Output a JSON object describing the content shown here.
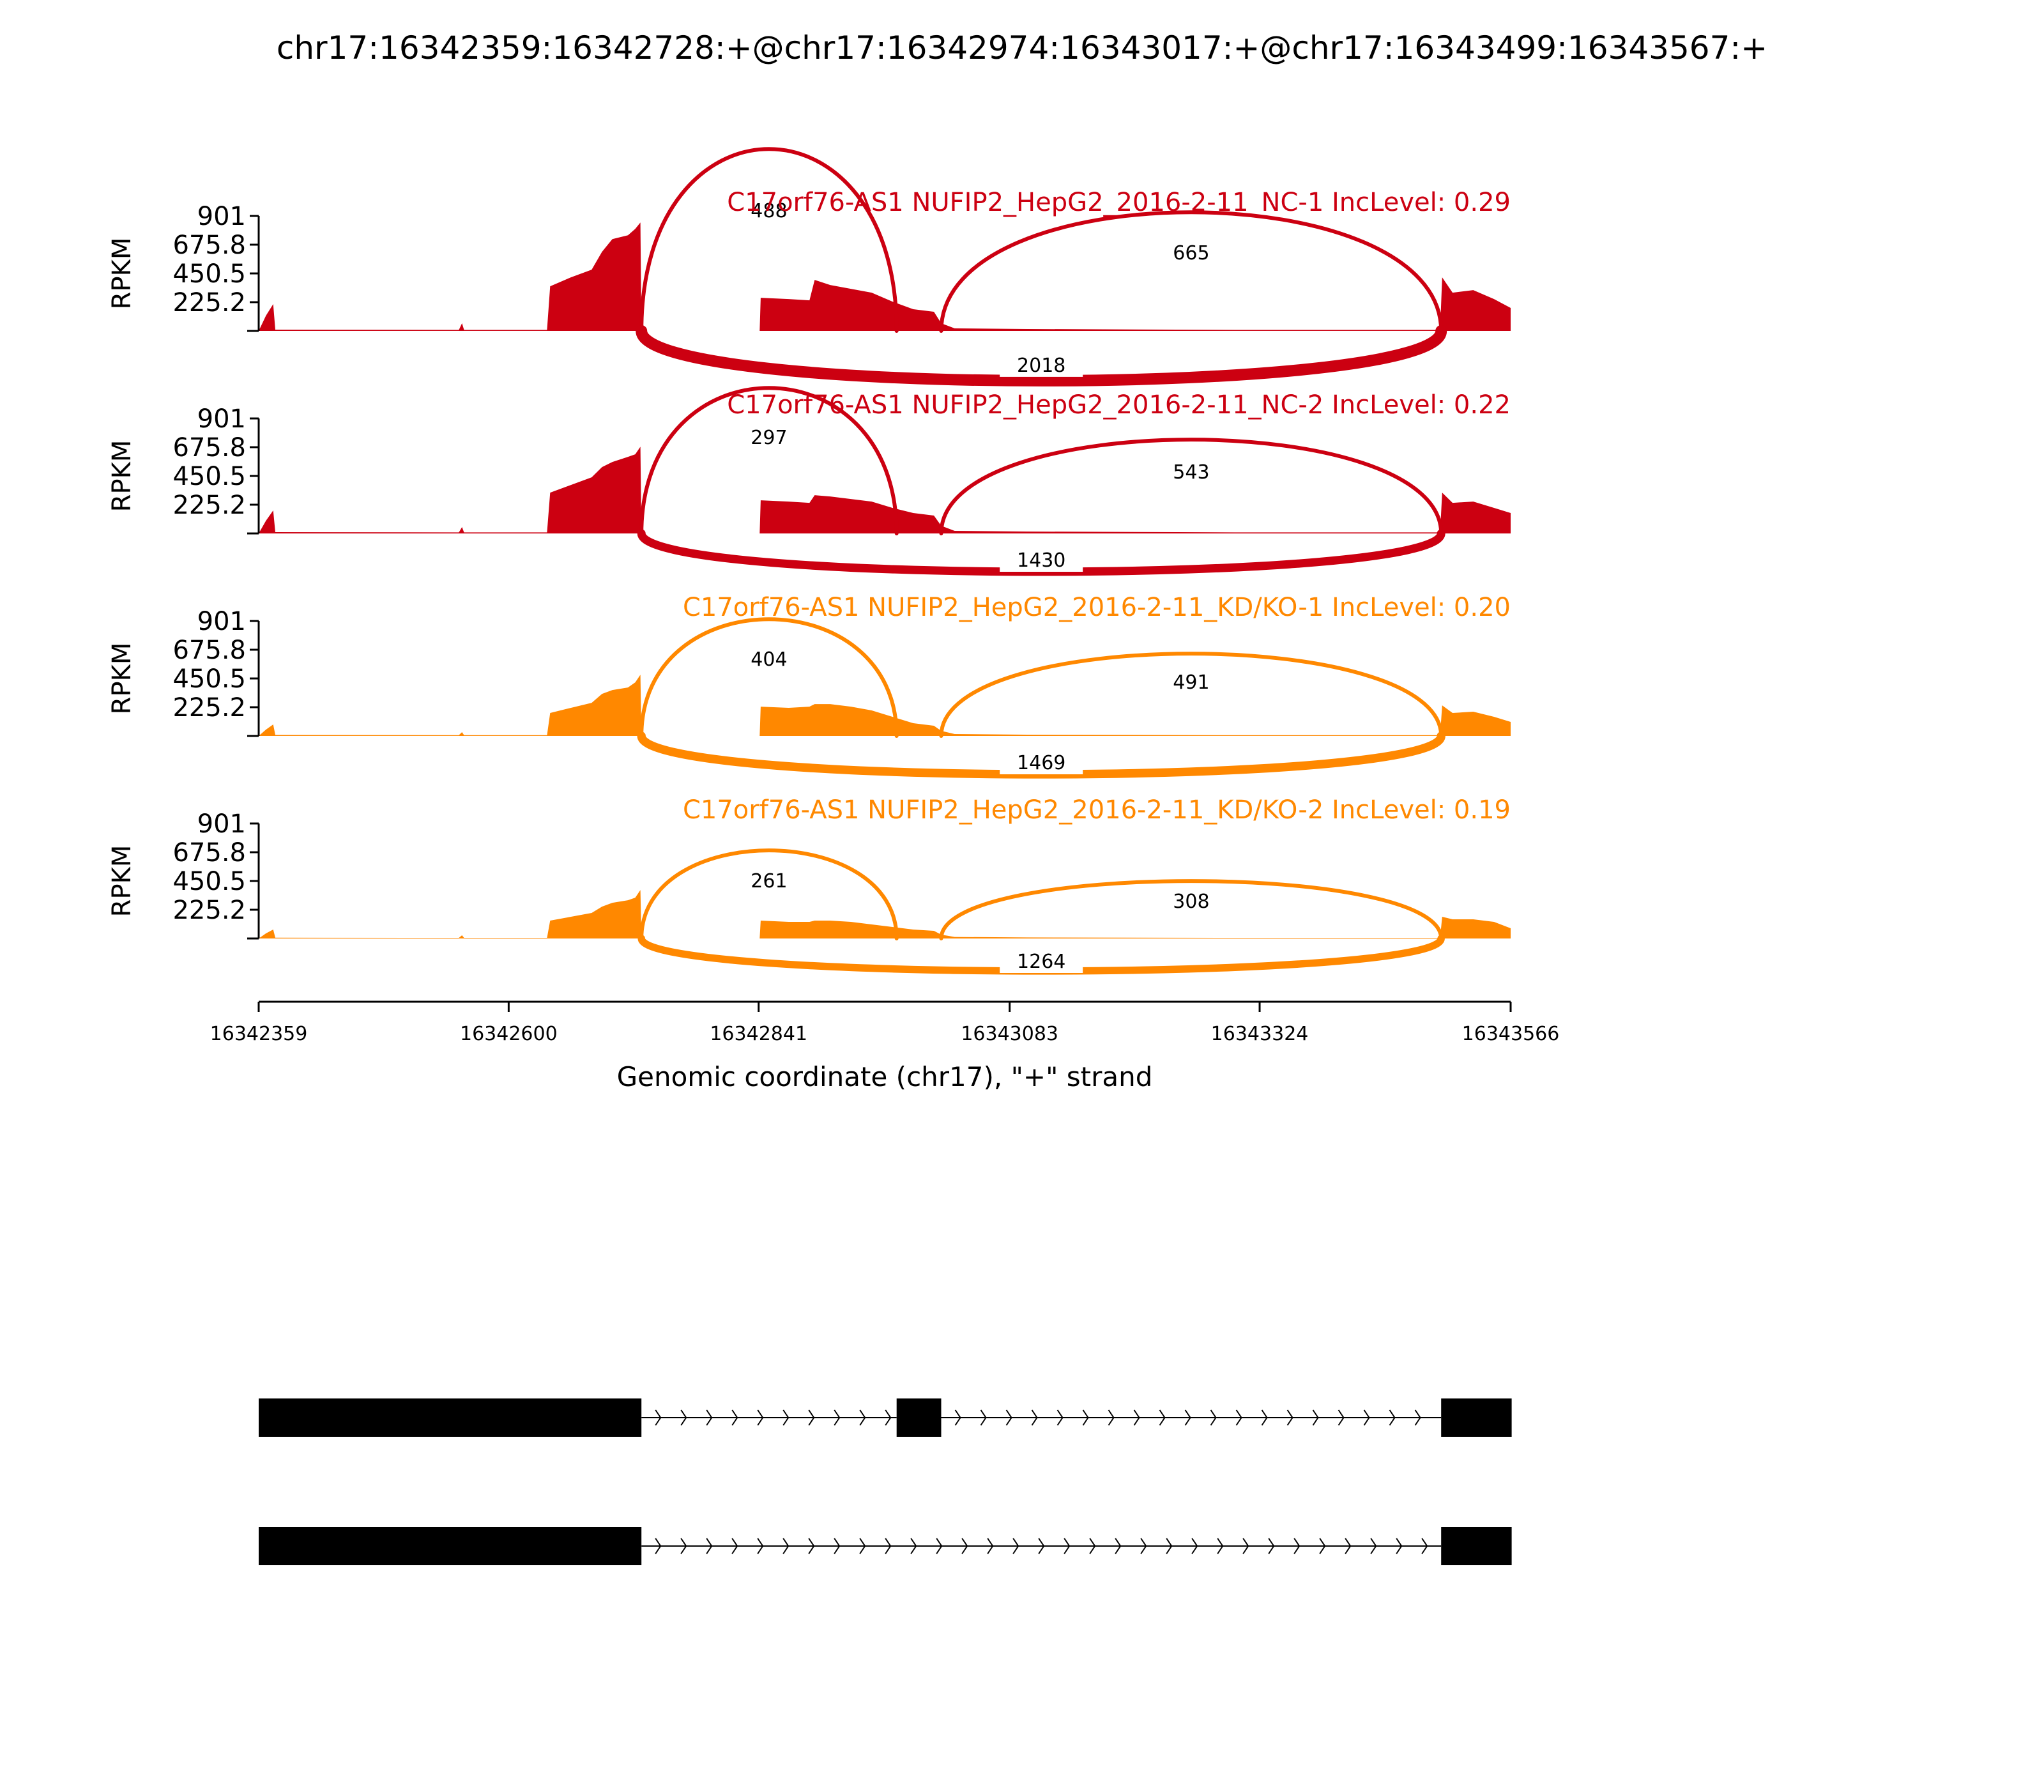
{
  "chart_data": {
    "type": "area",
    "title": "chr17:16342359:16342728:+@chr17:16342974:16343017:+@chr17:16343499:16343567:+",
    "xlabel": "Genomic coordinate (chr17), \"+\" strand",
    "ylabel": "RPKM",
    "xlim": [
      16342359,
      16343566
    ],
    "x_ticks": [
      "16342359",
      "16342600",
      "16342841",
      "16343083",
      "16343324",
      "16343566"
    ],
    "ylim": [
      0,
      901
    ],
    "y_ticks": [
      "225.2",
      "450.5",
      "675.8",
      "901"
    ],
    "colors": {
      "NC": "#cc0011",
      "KD": "#ff8800",
      "gene": "#000000"
    },
    "exons": [
      {
        "name": "exon1",
        "start": 16342359,
        "end": 16342728
      },
      {
        "name": "exon2",
        "start": 16342974,
        "end": 16343017
      },
      {
        "name": "exon3",
        "start": 16343499,
        "end": 16343567
      }
    ],
    "tracks": [
      {
        "label": "C17orf76-AS1 NUFIP2_HepG2_2016-2-11_NC-1 IncLevel: 0.29",
        "group": "NC",
        "coverage": [
          [
            16342359,
            0
          ],
          [
            16342366,
            120
          ],
          [
            16342373,
            210
          ],
          [
            16342375,
            10
          ],
          [
            16342552,
            8
          ],
          [
            16342555,
            60
          ],
          [
            16342557,
            8
          ],
          [
            16342637,
            8
          ],
          [
            16342640,
            350
          ],
          [
            16342660,
            420
          ],
          [
            16342680,
            480
          ],
          [
            16342690,
            620
          ],
          [
            16342700,
            720
          ],
          [
            16342715,
            750
          ],
          [
            16342722,
            800
          ],
          [
            16342727,
            850
          ],
          [
            16342728,
            0
          ],
          [
            16342842,
            0
          ],
          [
            16342843,
            260
          ],
          [
            16342870,
            250
          ],
          [
            16342890,
            240
          ],
          [
            16342895,
            400
          ],
          [
            16342910,
            360
          ],
          [
            16342930,
            330
          ],
          [
            16342950,
            300
          ],
          [
            16342970,
            230
          ],
          [
            16342990,
            170
          ],
          [
            16343010,
            150
          ],
          [
            16343017,
            60
          ],
          [
            16343030,
            20
          ],
          [
            16343100,
            15
          ],
          [
            16343300,
            8
          ],
          [
            16343498,
            8
          ],
          [
            16343500,
            420
          ],
          [
            16343510,
            300
          ],
          [
            16343530,
            320
          ],
          [
            16343550,
            250
          ],
          [
            16343566,
            180
          ],
          [
            16343566,
            0
          ]
        ],
        "junctions": [
          {
            "from": 16342728,
            "to": 16342974,
            "count": "488",
            "side": "above",
            "apex": 950
          },
          {
            "from": 16343017,
            "to": 16343499,
            "count": "665",
            "side": "above",
            "apex": 620
          },
          {
            "from": 16342728,
            "to": 16343499,
            "count": "2018",
            "side": "below",
            "apex": -260
          }
        ]
      },
      {
        "label": "C17orf76-AS1 NUFIP2_HepG2_2016-2-11_NC-2 IncLevel: 0.22",
        "group": "NC",
        "coverage": [
          [
            16342359,
            0
          ],
          [
            16342366,
            100
          ],
          [
            16342373,
            180
          ],
          [
            16342375,
            10
          ],
          [
            16342552,
            8
          ],
          [
            16342555,
            50
          ],
          [
            16342557,
            8
          ],
          [
            16342637,
            8
          ],
          [
            16342640,
            320
          ],
          [
            16342660,
            380
          ],
          [
            16342680,
            440
          ],
          [
            16342690,
            520
          ],
          [
            16342700,
            560
          ],
          [
            16342715,
            600
          ],
          [
            16342722,
            620
          ],
          [
            16342727,
            680
          ],
          [
            16342728,
            0
          ],
          [
            16342842,
            0
          ],
          [
            16342843,
            260
          ],
          [
            16342870,
            250
          ],
          [
            16342890,
            240
          ],
          [
            16342895,
            300
          ],
          [
            16342910,
            290
          ],
          [
            16342930,
            270
          ],
          [
            16342950,
            250
          ],
          [
            16342970,
            200
          ],
          [
            16342990,
            160
          ],
          [
            16343010,
            140
          ],
          [
            16343017,
            60
          ],
          [
            16343030,
            20
          ],
          [
            16343100,
            15
          ],
          [
            16343300,
            8
          ],
          [
            16343498,
            8
          ],
          [
            16343500,
            320
          ],
          [
            16343510,
            240
          ],
          [
            16343530,
            250
          ],
          [
            16343550,
            200
          ],
          [
            16343566,
            160
          ],
          [
            16343566,
            0
          ]
        ],
        "junctions": [
          {
            "from": 16342728,
            "to": 16342974,
            "count": "297",
            "side": "above",
            "apex": 760
          },
          {
            "from": 16343017,
            "to": 16343499,
            "count": "543",
            "side": "above",
            "apex": 490
          },
          {
            "from": 16342728,
            "to": 16343499,
            "count": "1430",
            "side": "below",
            "apex": -200
          }
        ]
      },
      {
        "label": "C17orf76-AS1 NUFIP2_HepG2_2016-2-11_KD/KO-1 IncLevel: 0.20",
        "group": "KD",
        "coverage": [
          [
            16342359,
            0
          ],
          [
            16342366,
            50
          ],
          [
            16342373,
            90
          ],
          [
            16342375,
            8
          ],
          [
            16342552,
            6
          ],
          [
            16342555,
            30
          ],
          [
            16342557,
            6
          ],
          [
            16342637,
            6
          ],
          [
            16342640,
            180
          ],
          [
            16342660,
            220
          ],
          [
            16342680,
            260
          ],
          [
            16342690,
            330
          ],
          [
            16342700,
            360
          ],
          [
            16342715,
            380
          ],
          [
            16342722,
            420
          ],
          [
            16342727,
            480
          ],
          [
            16342728,
            0
          ],
          [
            16342842,
            0
          ],
          [
            16342843,
            230
          ],
          [
            16342870,
            220
          ],
          [
            16342890,
            230
          ],
          [
            16342895,
            250
          ],
          [
            16342910,
            250
          ],
          [
            16342930,
            230
          ],
          [
            16342950,
            200
          ],
          [
            16342970,
            150
          ],
          [
            16342990,
            100
          ],
          [
            16343010,
            80
          ],
          [
            16343017,
            40
          ],
          [
            16343030,
            15
          ],
          [
            16343100,
            10
          ],
          [
            16343300,
            6
          ],
          [
            16343498,
            6
          ],
          [
            16343500,
            240
          ],
          [
            16343510,
            180
          ],
          [
            16343530,
            190
          ],
          [
            16343550,
            150
          ],
          [
            16343566,
            110
          ],
          [
            16343566,
            0
          ]
        ],
        "junctions": [
          {
            "from": 16342728,
            "to": 16342974,
            "count": "404",
            "side": "above",
            "apex": 610
          },
          {
            "from": 16343017,
            "to": 16343499,
            "count": "491",
            "side": "above",
            "apex": 430
          },
          {
            "from": 16342728,
            "to": 16343499,
            "count": "1469",
            "side": "below",
            "apex": -200
          }
        ]
      },
      {
        "label": "C17orf76-AS1 NUFIP2_HepG2_2016-2-11_KD/KO-2 IncLevel: 0.19",
        "group": "KD",
        "coverage": [
          [
            16342359,
            0
          ],
          [
            16342366,
            40
          ],
          [
            16342373,
            70
          ],
          [
            16342375,
            6
          ],
          [
            16342552,
            5
          ],
          [
            16342555,
            25
          ],
          [
            16342557,
            5
          ],
          [
            16342637,
            5
          ],
          [
            16342640,
            140
          ],
          [
            16342660,
            170
          ],
          [
            16342680,
            200
          ],
          [
            16342690,
            250
          ],
          [
            16342700,
            280
          ],
          [
            16342715,
            300
          ],
          [
            16342722,
            320
          ],
          [
            16342727,
            380
          ],
          [
            16342728,
            0
          ],
          [
            16342842,
            0
          ],
          [
            16342843,
            140
          ],
          [
            16342870,
            130
          ],
          [
            16342890,
            130
          ],
          [
            16342895,
            140
          ],
          [
            16342910,
            140
          ],
          [
            16342930,
            130
          ],
          [
            16342950,
            110
          ],
          [
            16342970,
            90
          ],
          [
            16342990,
            70
          ],
          [
            16343010,
            60
          ],
          [
            16343017,
            30
          ],
          [
            16343030,
            12
          ],
          [
            16343100,
            8
          ],
          [
            16343300,
            5
          ],
          [
            16343498,
            5
          ],
          [
            16343500,
            170
          ],
          [
            16343510,
            150
          ],
          [
            16343530,
            150
          ],
          [
            16343550,
            130
          ],
          [
            16343566,
            80
          ],
          [
            16343566,
            0
          ]
        ],
        "junctions": [
          {
            "from": 16342728,
            "to": 16342974,
            "count": "261",
            "side": "above",
            "apex": 460
          },
          {
            "from": 16343017,
            "to": 16343499,
            "count": "308",
            "side": "above",
            "apex": 300
          },
          {
            "from": 16342728,
            "to": 16343499,
            "count": "1264",
            "side": "below",
            "apex": -170
          }
        ]
      }
    ],
    "isoforms": [
      {
        "exons": [
          "exon1",
          "exon2",
          "exon3"
        ]
      },
      {
        "exons": [
          "exon1",
          "exon3"
        ]
      }
    ]
  }
}
